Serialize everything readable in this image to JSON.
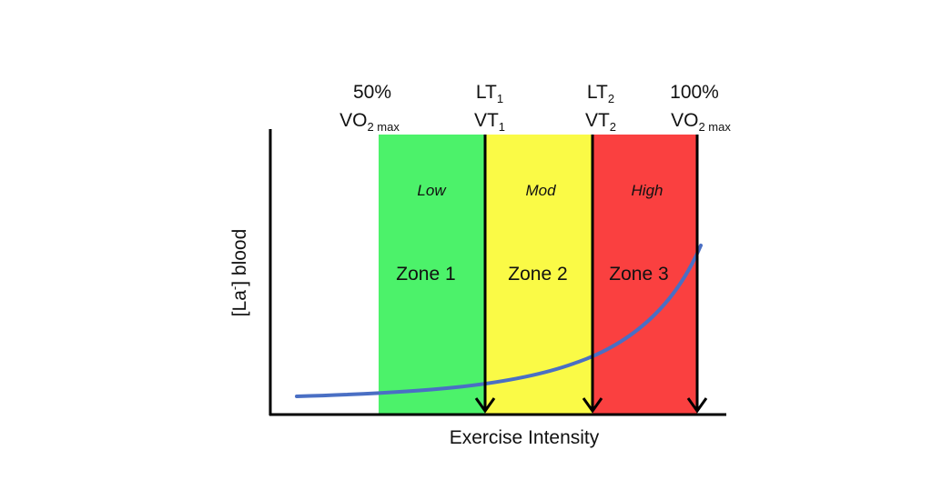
{
  "markers": [
    {
      "id": "m50",
      "line1": "50%",
      "line2": "VO",
      "line2_sub": "2 max"
    },
    {
      "id": "lt1",
      "line1": "LT",
      "line1_sub": "1",
      "line2": "VT",
      "line2_sub": "1"
    },
    {
      "id": "lt2",
      "line1": "LT",
      "line1_sub": "2",
      "line2": "VT",
      "line2_sub": "2"
    },
    {
      "id": "m100",
      "line1": "100%",
      "line2": "VO",
      "line2_sub": "2 max"
    }
  ],
  "zones": [
    {
      "level": "Low",
      "name": "Zone 1",
      "color": "#4cf26a"
    },
    {
      "level": "Mod",
      "name": "Zone 2",
      "color": "#fafa46"
    },
    {
      "level": "High",
      "name": "Zone 3",
      "color": "#fa4040"
    }
  ],
  "axes": {
    "x_label": "Exercise Intensity",
    "y_label_pre": "[La",
    "y_label_sup": "-",
    "y_label_post": "] blood"
  },
  "colors": {
    "curve": "#4a6fc4",
    "axis": "#000000"
  }
}
